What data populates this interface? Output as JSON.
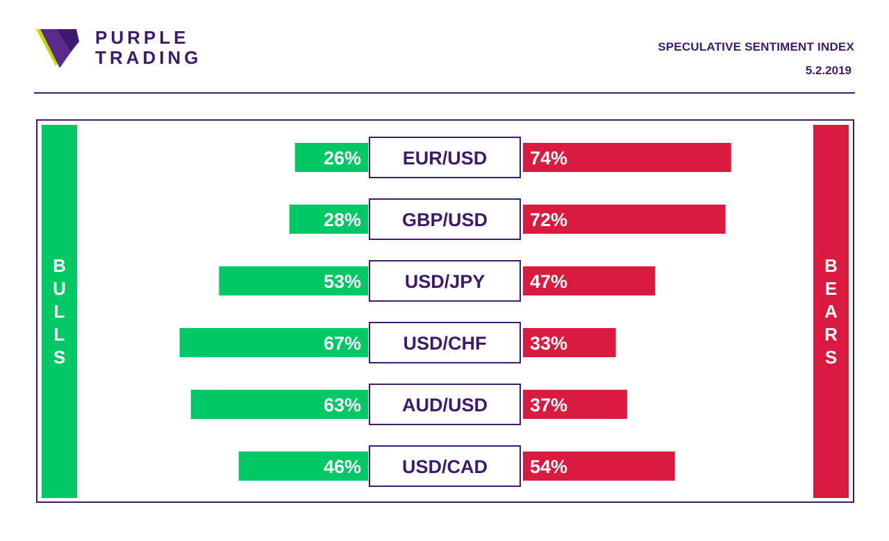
{
  "brand": {
    "line1": "PURPLE",
    "line2": "TRADING"
  },
  "header": {
    "title": "SPECULATIVE SENTIMENT INDEX",
    "date": "5.2.2019"
  },
  "labels": {
    "bulls": "BULLS",
    "bears": "BEARS"
  },
  "colors": {
    "purple": "#3d1a6e",
    "bull": "#00c864",
    "bear": "#db1a40",
    "logo_lime": "#c6d800"
  },
  "chart_data": {
    "type": "bar",
    "categories": [
      "EUR/USD",
      "GBP/USD",
      "USD/JPY",
      "USD/CHF",
      "AUD/USD",
      "USD/CAD"
    ],
    "series": [
      {
        "name": "BULLS",
        "values": [
          26,
          28,
          53,
          67,
          63,
          46
        ],
        "labels": [
          "26%",
          "28%",
          "53%",
          "67%",
          "63%",
          "46%"
        ]
      },
      {
        "name": "BEARS",
        "values": [
          74,
          72,
          47,
          33,
          37,
          54
        ],
        "labels": [
          "74%",
          "72%",
          "47%",
          "33%",
          "37%",
          "54%"
        ]
      }
    ],
    "title": "SPECULATIVE SENTIMENT INDEX",
    "unit": "%",
    "xlim": [
      0,
      100
    ]
  }
}
